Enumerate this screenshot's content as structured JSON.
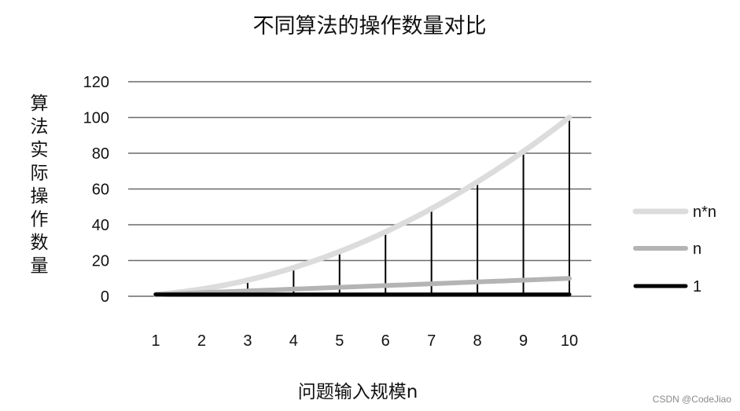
{
  "chart_data": {
    "type": "line",
    "title": "不同算法的操作数量对比",
    "xlabel": "问题输入规模n",
    "ylabel": "算法实际操作数量",
    "x": [
      1,
      2,
      3,
      4,
      5,
      6,
      7,
      8,
      9,
      10
    ],
    "ylim": [
      0,
      120
    ],
    "yticks": [
      0,
      20,
      40,
      60,
      80,
      100,
      120
    ],
    "grid": true,
    "legend_position": "right",
    "series": [
      {
        "name": "n*n",
        "values": [
          1,
          4,
          9,
          16,
          25,
          36,
          49,
          64,
          81,
          100
        ],
        "color": "#dcdcdc"
      },
      {
        "name": "n",
        "values": [
          1,
          2,
          3,
          4,
          5,
          6,
          7,
          8,
          9,
          10
        ],
        "color": "#b4b4b4"
      },
      {
        "name": "1",
        "values": [
          1,
          1,
          1,
          1,
          1,
          1,
          1,
          1,
          1,
          1
        ],
        "color": "#000000"
      }
    ],
    "drop_lines": {
      "color": "#000000"
    }
  },
  "watermark": "CSDN @CodeJiao"
}
